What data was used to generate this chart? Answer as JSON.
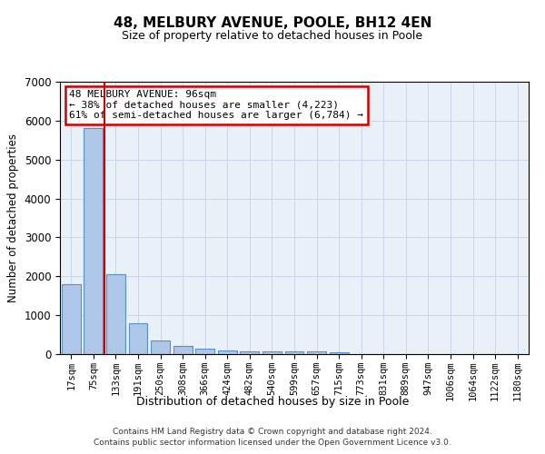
{
  "title": "48, MELBURY AVENUE, POOLE, BH12 4EN",
  "subtitle": "Size of property relative to detached houses in Poole",
  "xlabel": "Distribution of detached houses by size in Poole",
  "ylabel": "Number of detached properties",
  "categories": [
    "17sqm",
    "75sqm",
    "133sqm",
    "191sqm",
    "250sqm",
    "308sqm",
    "366sqm",
    "424sqm",
    "482sqm",
    "540sqm",
    "599sqm",
    "657sqm",
    "715sqm",
    "773sqm",
    "831sqm",
    "889sqm",
    "947sqm",
    "1006sqm",
    "1064sqm",
    "1122sqm",
    "1180sqm"
  ],
  "values": [
    1800,
    5800,
    2050,
    800,
    340,
    220,
    130,
    105,
    80,
    70,
    65,
    60,
    58,
    0,
    0,
    0,
    0,
    0,
    0,
    0,
    0
  ],
  "bar_color": "#aec6e8",
  "bar_edge_color": "#5a8fc2",
  "annotation_text": "48 MELBURY AVENUE: 96sqm\n← 38% of detached houses are smaller (4,223)\n61% of semi-detached houses are larger (6,784) →",
  "annotation_box_color": "#ffffff",
  "annotation_box_edge": "#cc0000",
  "vline_color": "#cc0000",
  "grid_color": "#c8d8e8",
  "background_color": "#e8f0f8",
  "ylim": [
    0,
    7000
  ],
  "yticks": [
    0,
    1000,
    2000,
    3000,
    4000,
    5000,
    6000,
    7000
  ],
  "footer_line1": "Contains HM Land Registry data © Crown copyright and database right 2024.",
  "footer_line2": "Contains public sector information licensed under the Open Government Licence v3.0."
}
